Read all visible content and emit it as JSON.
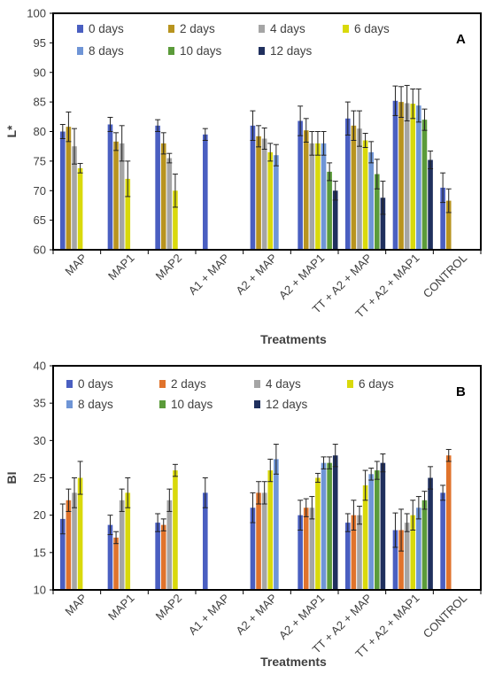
{
  "chart_data": [
    {
      "type": "bar",
      "panel": "A",
      "ylabel": "L*",
      "xlabel": "Treatments",
      "ylim": [
        60,
        100
      ],
      "yticks": [
        60,
        65,
        70,
        75,
        80,
        85,
        90,
        95,
        100
      ],
      "grid": false,
      "legend_position": "top-left inside plot",
      "categories": [
        "MAP",
        "MAP1",
        "MAP2",
        "A1 + MAP",
        "A2 + MAP",
        "A2 + MAP1",
        "TT + A2 + MAP",
        "TT + A2 + MAP1",
        "CONTROL"
      ],
      "series": [
        {
          "name": "0 days",
          "color": "#4a5fc1",
          "values": [
            80.0,
            81.2,
            81.0,
            79.5,
            81.0,
            81.8,
            82.2,
            85.2,
            70.5
          ],
          "errors": [
            1.2,
            1.2,
            1.0,
            1.0,
            2.5,
            2.5,
            2.8,
            2.5,
            2.5
          ]
        },
        {
          "name": "2 days",
          "color": "#b8941f",
          "values": [
            80.8,
            78.3,
            78.0,
            null,
            79.2,
            80.2,
            81.0,
            85.0,
            68.3
          ],
          "errors": [
            2.5,
            1.5,
            1.8,
            null,
            1.8,
            2.0,
            2.5,
            2.6,
            2.0
          ]
        },
        {
          "name": "4 days",
          "color": "#a5a5a5",
          "values": [
            77.5,
            78.0,
            75.5,
            null,
            78.8,
            78.0,
            80.5,
            84.8,
            null
          ],
          "errors": [
            3.0,
            3.0,
            0.8,
            null,
            1.8,
            2.0,
            3.0,
            3.0,
            null
          ]
        },
        {
          "name": "6 days",
          "color": "#d9d90b",
          "values": [
            73.8,
            72.0,
            70.0,
            null,
            76.5,
            78.0,
            78.5,
            84.7,
            null
          ],
          "errors": [
            0.8,
            3.0,
            2.8,
            null,
            1.5,
            2.0,
            1.2,
            2.5,
            null
          ]
        },
        {
          "name": "8 days",
          "color": "#6f95d6",
          "values": [
            null,
            null,
            null,
            null,
            76.0,
            78.0,
            76.5,
            84.4,
            null
          ],
          "errors": [
            null,
            null,
            null,
            null,
            1.8,
            2.0,
            1.8,
            2.8,
            null
          ]
        },
        {
          "name": "10 days",
          "color": "#5b9b3a",
          "values": [
            null,
            null,
            null,
            null,
            null,
            73.2,
            72.8,
            82.0,
            null
          ],
          "errors": [
            null,
            null,
            null,
            null,
            null,
            1.5,
            2.5,
            1.8,
            null
          ]
        },
        {
          "name": "12 days",
          "color": "#20305e",
          "values": [
            null,
            null,
            null,
            null,
            null,
            70.0,
            68.8,
            75.2,
            null
          ],
          "errors": [
            null,
            null,
            null,
            null,
            null,
            1.6,
            2.8,
            1.5,
            null
          ]
        }
      ]
    },
    {
      "type": "bar",
      "panel": "B",
      "ylabel": "BI",
      "xlabel": "Treatments",
      "ylim": [
        10,
        40
      ],
      "yticks": [
        10,
        15,
        20,
        25,
        30,
        35,
        40
      ],
      "grid": false,
      "legend_position": "top-left inside plot",
      "categories": [
        "MAP",
        "MAP1",
        "MAP2",
        "A1 + MAP",
        "A2 + MAP",
        "A2 + MAP1",
        "TT + A2 + MAP",
        "TT + A2 + MAP1",
        "CONTROL"
      ],
      "series": [
        {
          "name": "0 days",
          "color": "#4a5fc1",
          "values": [
            19.5,
            18.7,
            19.0,
            23.0,
            21.0,
            20.0,
            19.0,
            18.0,
            23.0
          ],
          "errors": [
            2.0,
            1.3,
            1.2,
            2.0,
            2.0,
            2.0,
            1.2,
            2.3,
            1.0
          ]
        },
        {
          "name": "2 days",
          "color": "#e0732c",
          "values": [
            22.0,
            17.0,
            18.7,
            null,
            23.0,
            21.0,
            20.0,
            18.0,
            28.0
          ],
          "errors": [
            1.5,
            0.8,
            0.8,
            null,
            1.5,
            1.2,
            2.0,
            2.8,
            0.8
          ]
        },
        {
          "name": "4 days",
          "color": "#a5a5a5",
          "values": [
            23.0,
            22.0,
            22.0,
            null,
            23.0,
            21.0,
            20.0,
            19.0,
            null
          ],
          "errors": [
            2.0,
            1.5,
            1.5,
            null,
            1.5,
            1.5,
            1.2,
            1.2,
            null
          ]
        },
        {
          "name": "6 days",
          "color": "#d9d90b",
          "values": [
            25.0,
            23.0,
            26.0,
            null,
            26.0,
            25.0,
            24.0,
            20.0,
            null
          ],
          "errors": [
            2.2,
            2.0,
            0.8,
            null,
            1.5,
            0.6,
            2.0,
            2.0,
            null
          ]
        },
        {
          "name": "8 days",
          "color": "#6f95d6",
          "values": [
            null,
            null,
            null,
            null,
            27.5,
            27.0,
            25.5,
            21.0,
            null
          ],
          "errors": [
            null,
            null,
            null,
            null,
            2.0,
            0.8,
            0.8,
            1.5,
            null
          ]
        },
        {
          "name": "10 days",
          "color": "#5b9b3a",
          "values": [
            null,
            null,
            null,
            null,
            null,
            27.0,
            26.0,
            22.0,
            null
          ],
          "errors": [
            null,
            null,
            null,
            null,
            null,
            0.8,
            1.2,
            1.2,
            null
          ]
        },
        {
          "name": "12 days",
          "color": "#20305e",
          "values": [
            null,
            null,
            null,
            null,
            null,
            28.0,
            27.0,
            25.0,
            null
          ],
          "errors": [
            null,
            null,
            null,
            null,
            null,
            1.5,
            1.2,
            1.5,
            null
          ]
        }
      ]
    }
  ]
}
